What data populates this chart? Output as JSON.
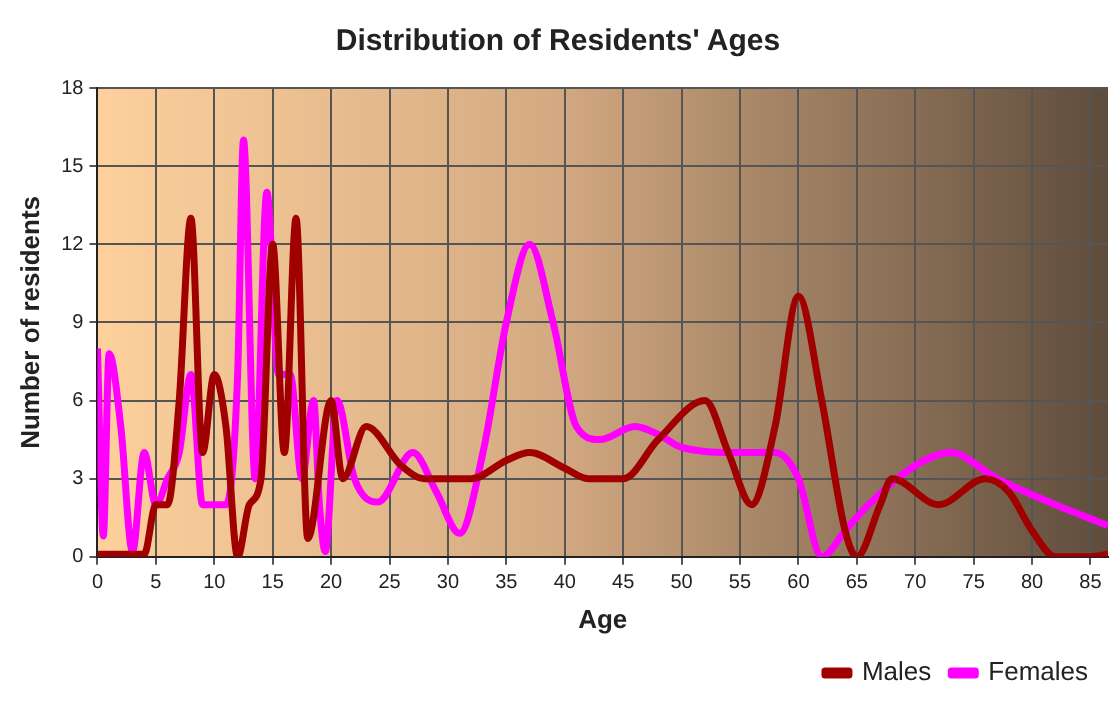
{
  "chart_data": {
    "type": "line",
    "title": "Distribution of Residents' Ages",
    "xlabel": "Age",
    "ylabel": "Number of residents",
    "xlim": [
      0,
      86.5
    ],
    "xticks": [
      0,
      5,
      10,
      15,
      20,
      25,
      30,
      35,
      40,
      45,
      50,
      55,
      60,
      65,
      70,
      75,
      80,
      85
    ],
    "ylim": [
      0,
      18
    ],
    "yticks": [
      0,
      3,
      6,
      9,
      12,
      15,
      18
    ],
    "grid": true,
    "legend": "bottom right",
    "marker": "none",
    "line_style": "solid",
    "series": [
      {
        "name": "Males",
        "color": "#a00000",
        "x": [
          0,
          4,
          5,
          6,
          7,
          8,
          9,
          10,
          11,
          12,
          13,
          14,
          15,
          16,
          17,
          18,
          20,
          21,
          23,
          26,
          28,
          32,
          35,
          37,
          40,
          42,
          45,
          48,
          52,
          54,
          56,
          58,
          60,
          62,
          64,
          65,
          67,
          68,
          72,
          76,
          78,
          80,
          82,
          85,
          86.5
        ],
        "values": [
          0.1,
          0.1,
          2,
          2,
          6,
          13,
          4,
          7,
          5,
          0,
          2,
          3,
          12,
          4,
          13,
          0.7,
          6,
          3,
          5,
          3.5,
          3,
          3,
          3.7,
          4,
          3.4,
          3,
          3,
          4.5,
          6,
          4,
          2,
          5,
          10,
          6,
          1,
          0,
          2,
          3,
          2,
          3,
          2.5,
          1,
          0,
          0,
          0.1
        ]
      },
      {
        "name": "Females",
        "color": "#ff00ff",
        "x": [
          0,
          0.5,
          1,
          2,
          3,
          4,
          5,
          6,
          7,
          8,
          9,
          10,
          11,
          12,
          12.5,
          13.5,
          14.5,
          15.5,
          16.5,
          17.5,
          18.5,
          19,
          19.5,
          20.5,
          22,
          24,
          27,
          29,
          31,
          33,
          35,
          37,
          39,
          41,
          43,
          46,
          48,
          50,
          55,
          58,
          60,
          62,
          64,
          66,
          70,
          73,
          77,
          82,
          86.5
        ],
        "values": [
          8,
          0.8,
          7.8,
          5,
          0.2,
          4,
          2,
          3,
          4,
          7,
          2,
          2,
          2,
          7,
          16,
          3,
          14,
          7,
          7,
          3,
          6,
          2,
          0.2,
          6,
          3,
          2.1,
          4,
          2.5,
          0.9,
          4,
          9,
          12,
          9,
          5,
          4.5,
          5,
          4.7,
          4.2,
          4,
          4,
          3,
          0,
          1,
          2,
          3.5,
          4,
          3,
          2,
          1.2
        ]
      }
    ]
  }
}
